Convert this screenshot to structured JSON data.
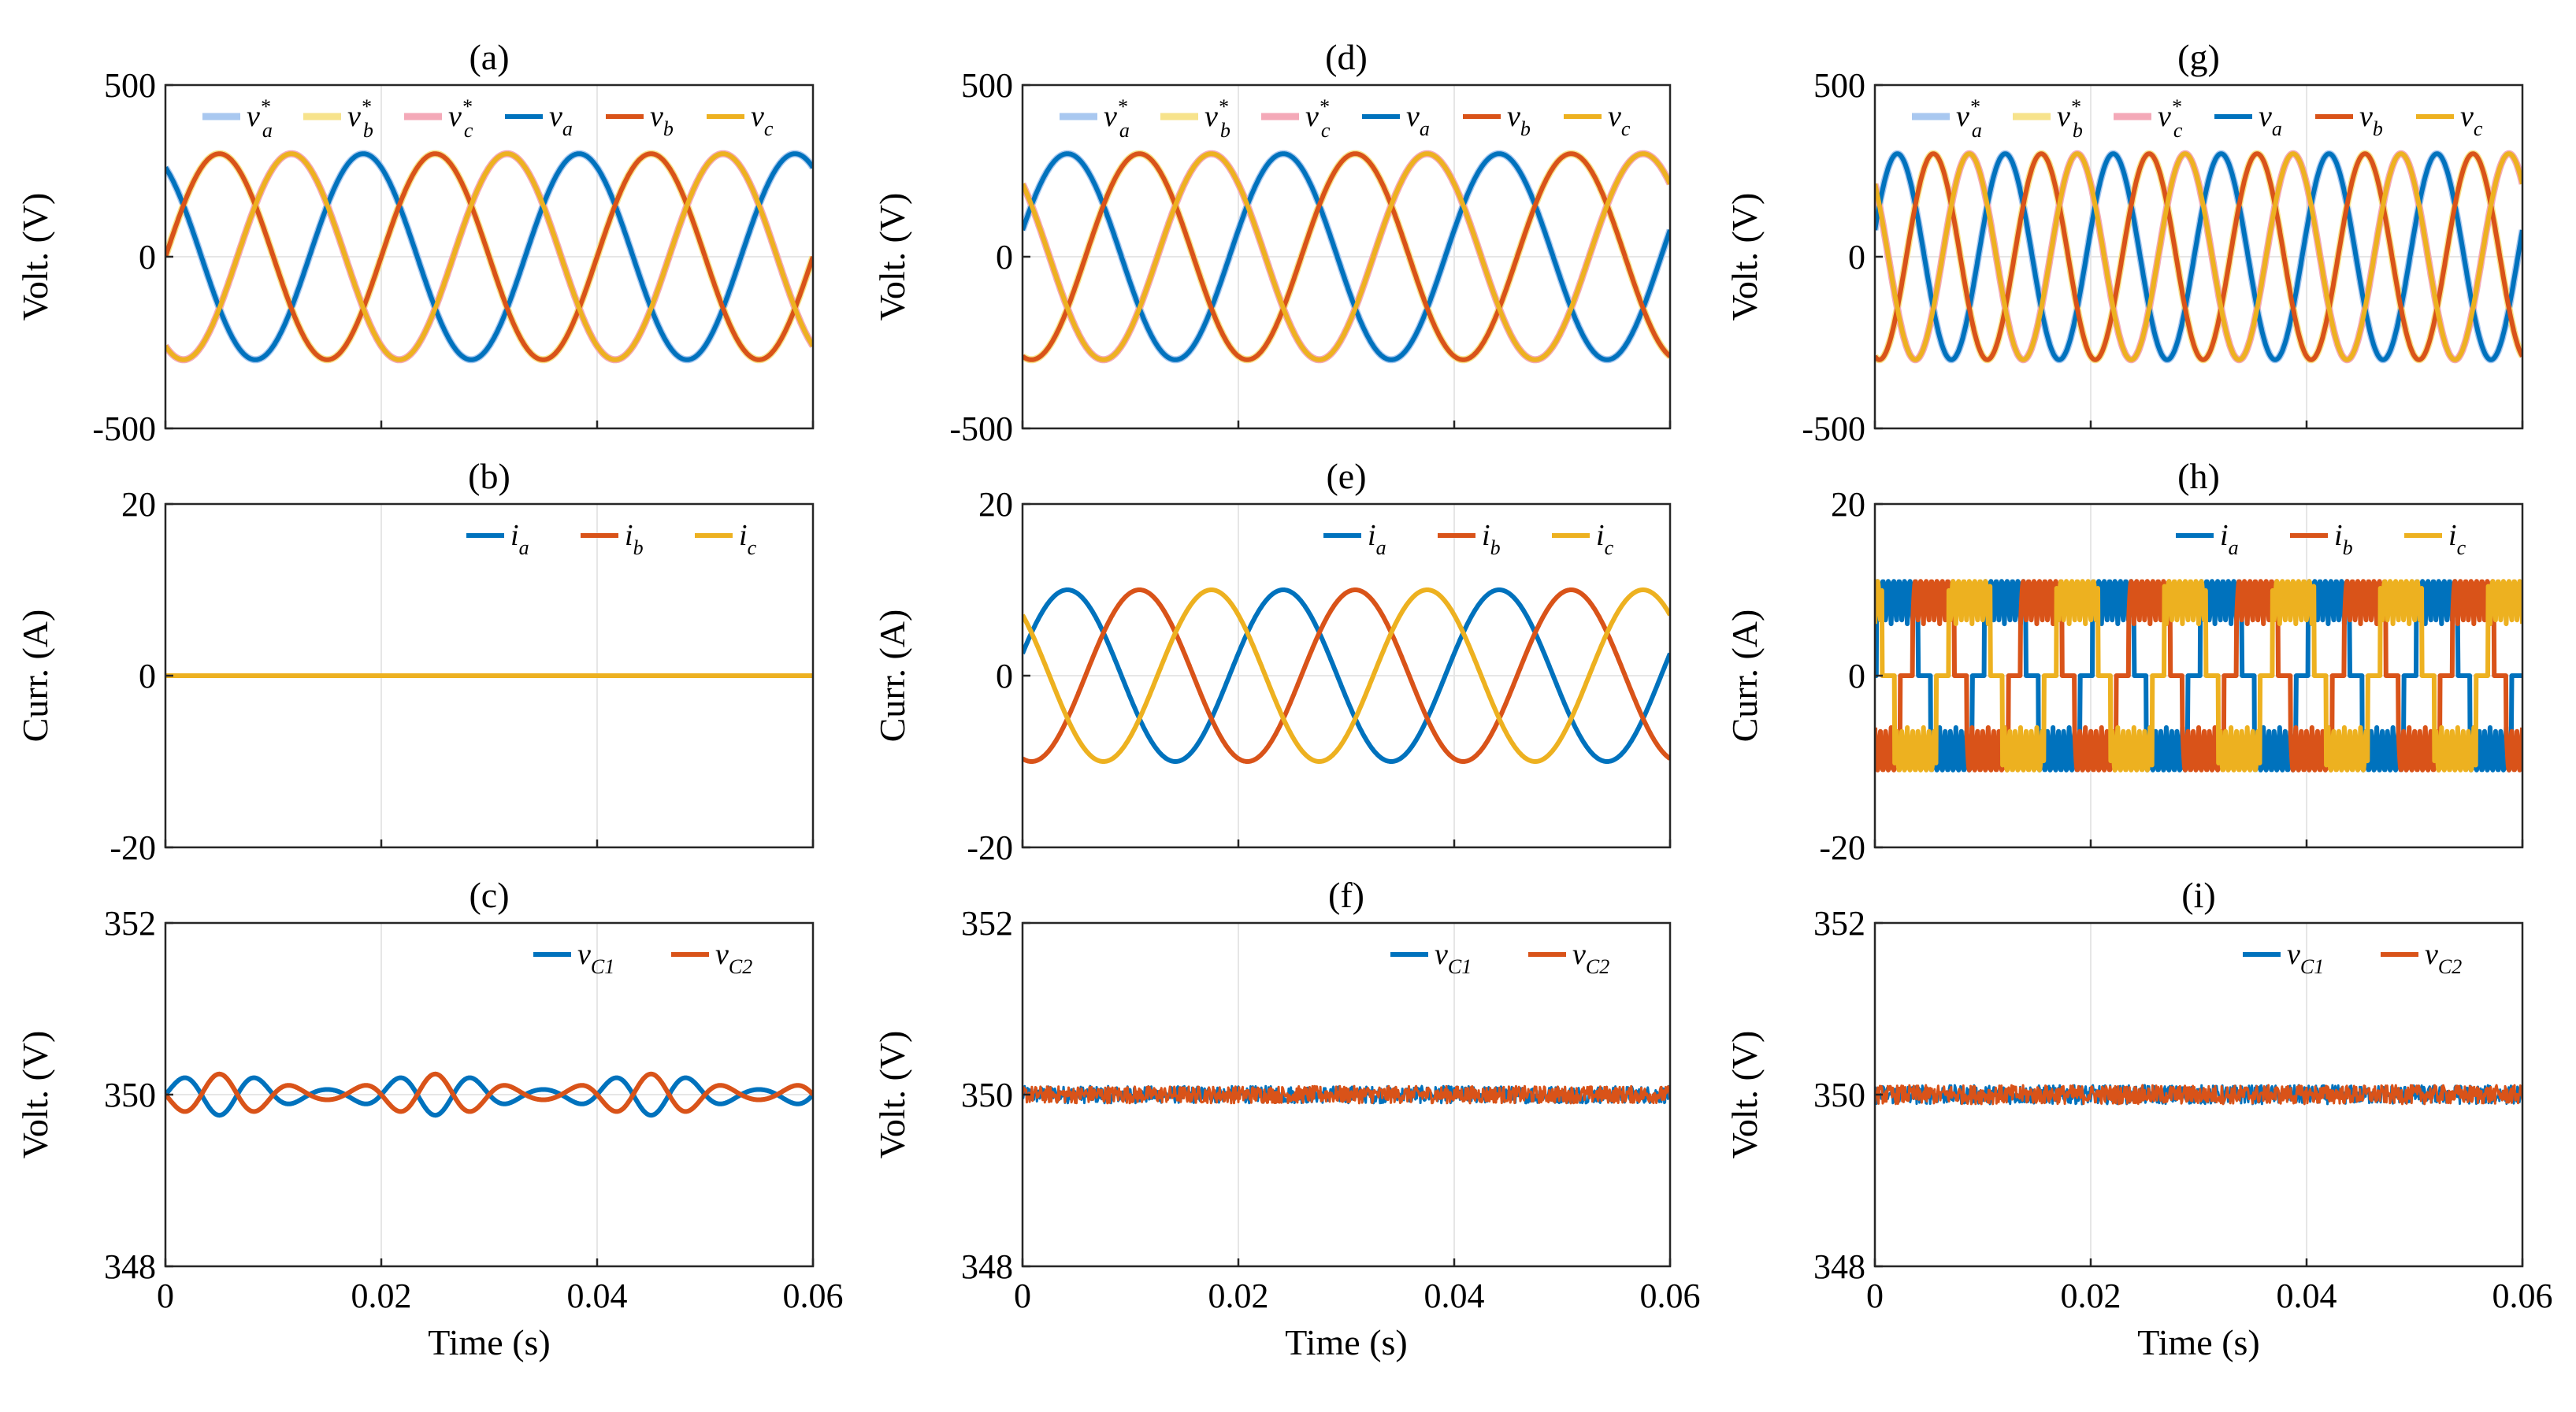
{
  "colors": {
    "blue": "#0072BD",
    "orange": "#D95319",
    "yellow": "#EDB120",
    "ref_a": "#A9C8F0",
    "ref_b": "#F7E38C",
    "ref_c": "#F4A9B8",
    "grid": "#e6e6e6"
  },
  "time_axis": {
    "label": "Time (s)",
    "ticks": [
      "0",
      "0.02",
      "0.04",
      "0.06"
    ],
    "xlim": [
      0,
      0.06
    ]
  },
  "chart_data": [
    {
      "id": "a",
      "title": "(a)",
      "type": "line",
      "ylabel": "Volt. (V)",
      "ylim": [
        -500,
        500
      ],
      "yticks": [
        "500",
        "0",
        "-500"
      ],
      "grid": true,
      "legend": "top",
      "series": [
        {
          "name": "v_a^*",
          "kind": "sine",
          "amp": 300,
          "freq": 50,
          "phase_deg": 120,
          "color": "ref_a",
          "ref": true
        },
        {
          "name": "v_b^*",
          "kind": "sine",
          "amp": 300,
          "freq": 50,
          "phase_deg": 0,
          "color": "ref_b",
          "ref": true
        },
        {
          "name": "v_c^*",
          "kind": "sine",
          "amp": 300,
          "freq": 50,
          "phase_deg": 240,
          "color": "ref_c",
          "ref": true
        },
        {
          "name": "v_a",
          "kind": "sine",
          "amp": 300,
          "freq": 50,
          "phase_deg": 120,
          "color": "blue"
        },
        {
          "name": "v_b",
          "kind": "sine",
          "amp": 300,
          "freq": 50,
          "phase_deg": 0,
          "color": "orange"
        },
        {
          "name": "v_c",
          "kind": "sine",
          "amp": 300,
          "freq": 50,
          "phase_deg": 240,
          "color": "yellow"
        }
      ]
    },
    {
      "id": "b",
      "title": "(b)",
      "type": "line",
      "ylabel": "Curr. (A)",
      "ylim": [
        -20,
        20
      ],
      "yticks": [
        "20",
        "0",
        "-20"
      ],
      "grid": true,
      "legend": "top-right",
      "series": [
        {
          "name": "i_a",
          "kind": "const",
          "value": 0,
          "color": "blue"
        },
        {
          "name": "i_b",
          "kind": "const",
          "value": 0,
          "color": "orange"
        },
        {
          "name": "i_c",
          "kind": "const",
          "value": 0,
          "color": "yellow"
        }
      ]
    },
    {
      "id": "c",
      "title": "(c)",
      "type": "line",
      "ylabel": "Volt. (V)",
      "ylim": [
        348,
        352
      ],
      "yticks": [
        "352",
        "350",
        "348"
      ],
      "grid": true,
      "legend": "top-right",
      "series": [
        {
          "name": "v_C1",
          "kind": "ripple",
          "offset": 350,
          "amp": 0.15,
          "freq": 150,
          "phase_deg": 0,
          "color": "blue",
          "sign": 1
        },
        {
          "name": "v_C2",
          "kind": "ripple",
          "offset": 350,
          "amp": 0.15,
          "freq": 150,
          "phase_deg": 0,
          "color": "orange",
          "sign": -1
        }
      ]
    },
    {
      "id": "d",
      "title": "(d)",
      "type": "line",
      "ylabel": "Volt. (V)",
      "ylim": [
        -500,
        500
      ],
      "yticks": [
        "500",
        "0",
        "-500"
      ],
      "grid": true,
      "legend": "top",
      "series": [
        {
          "name": "v_a^*",
          "kind": "sine",
          "amp": 300,
          "freq": 50,
          "phase_deg": 15,
          "color": "ref_a",
          "ref": true
        },
        {
          "name": "v_b^*",
          "kind": "sine",
          "amp": 300,
          "freq": 50,
          "phase_deg": -105,
          "color": "ref_b",
          "ref": true
        },
        {
          "name": "v_c^*",
          "kind": "sine",
          "amp": 300,
          "freq": 50,
          "phase_deg": 135,
          "color": "ref_c",
          "ref": true
        },
        {
          "name": "v_a",
          "kind": "sine",
          "amp": 300,
          "freq": 50,
          "phase_deg": 15,
          "color": "blue"
        },
        {
          "name": "v_b",
          "kind": "sine",
          "amp": 300,
          "freq": 50,
          "phase_deg": -105,
          "color": "orange"
        },
        {
          "name": "v_c",
          "kind": "sine",
          "amp": 300,
          "freq": 50,
          "phase_deg": 135,
          "color": "yellow"
        }
      ]
    },
    {
      "id": "e",
      "title": "(e)",
      "type": "line",
      "ylabel": "Curr. (A)",
      "ylim": [
        -20,
        20
      ],
      "yticks": [
        "20",
        "0",
        "-20"
      ],
      "grid": true,
      "legend": "top-right",
      "series": [
        {
          "name": "i_a",
          "kind": "sine",
          "amp": 10,
          "freq": 50,
          "phase_deg": 15,
          "color": "blue"
        },
        {
          "name": "i_b",
          "kind": "sine",
          "amp": 10,
          "freq": 50,
          "phase_deg": -105,
          "color": "orange"
        },
        {
          "name": "i_c",
          "kind": "sine",
          "amp": 10,
          "freq": 50,
          "phase_deg": 135,
          "color": "yellow"
        }
      ]
    },
    {
      "id": "f",
      "title": "(f)",
      "type": "line",
      "ylabel": "Volt. (V)",
      "ylim": [
        348,
        352
      ],
      "yticks": [
        "352",
        "350",
        "348"
      ],
      "grid": true,
      "legend": "top-right",
      "series": [
        {
          "name": "v_C1",
          "kind": "noise",
          "offset": 350,
          "amp": 0.1,
          "color": "blue"
        },
        {
          "name": "v_C2",
          "kind": "noise",
          "offset": 350,
          "amp": 0.1,
          "color": "orange"
        }
      ]
    },
    {
      "id": "g",
      "title": "(g)",
      "type": "line",
      "ylabel": "Volt. (V)",
      "ylim": [
        -500,
        500
      ],
      "yticks": [
        "500",
        "0",
        "-500"
      ],
      "grid": true,
      "legend": "top",
      "series": [
        {
          "name": "v_a^*",
          "kind": "sine",
          "amp": 300,
          "freq": 100,
          "phase_deg": 15,
          "color": "ref_a",
          "ref": true
        },
        {
          "name": "v_b^*",
          "kind": "sine",
          "amp": 300,
          "freq": 100,
          "phase_deg": -105,
          "color": "ref_b",
          "ref": true
        },
        {
          "name": "v_c^*",
          "kind": "sine",
          "amp": 300,
          "freq": 100,
          "phase_deg": 135,
          "color": "ref_c",
          "ref": true
        },
        {
          "name": "v_a",
          "kind": "sine",
          "amp": 300,
          "freq": 100,
          "phase_deg": 15,
          "color": "blue"
        },
        {
          "name": "v_b",
          "kind": "sine",
          "amp": 300,
          "freq": 100,
          "phase_deg": -105,
          "color": "orange"
        },
        {
          "name": "v_c",
          "kind": "sine",
          "amp": 300,
          "freq": 100,
          "phase_deg": 135,
          "color": "yellow"
        }
      ]
    },
    {
      "id": "h",
      "title": "(h)",
      "type": "line",
      "ylabel": "Curr. (A)",
      "ylim": [
        -20,
        20
      ],
      "yticks": [
        "20",
        "0",
        "-20"
      ],
      "grid": true,
      "legend": "top-right",
      "series": [
        {
          "name": "i_a",
          "kind": "pulsed",
          "amp": 11,
          "freq": 100,
          "phase_deg": 15,
          "color": "blue"
        },
        {
          "name": "i_b",
          "kind": "pulsed",
          "amp": 11,
          "freq": 100,
          "phase_deg": -105,
          "color": "orange"
        },
        {
          "name": "i_c",
          "kind": "pulsed",
          "amp": 11,
          "freq": 100,
          "phase_deg": 135,
          "color": "yellow"
        }
      ]
    },
    {
      "id": "i",
      "title": "(i)",
      "type": "line",
      "ylabel": "Volt. (V)",
      "ylim": [
        348,
        352
      ],
      "yticks": [
        "352",
        "350",
        "348"
      ],
      "grid": true,
      "legend": "top-right",
      "series": [
        {
          "name": "v_C1",
          "kind": "noise",
          "offset": 350,
          "amp": 0.11,
          "color": "blue"
        },
        {
          "name": "v_C2",
          "kind": "noise",
          "offset": 350,
          "amp": 0.11,
          "color": "orange"
        }
      ]
    }
  ]
}
